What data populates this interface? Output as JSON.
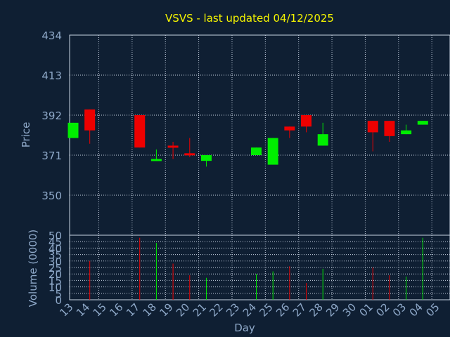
{
  "title": "VSVS - last updated 04/12/2025",
  "colors": {
    "background": "#0f1f33",
    "plot_bg": "#0f1f33",
    "axis_text": "#8fa9c9",
    "title": "#f5f500",
    "grid": "#c8d4e3",
    "up": "#00ee00",
    "down": "#ee0000"
  },
  "chart_data": [
    {
      "type": "candlestick",
      "ylabel": "Price",
      "ylim": [
        329,
        434
      ],
      "yticks": [
        434,
        413,
        392,
        371,
        350
      ],
      "grid": true,
      "x": [
        "13",
        "14",
        "15",
        "16",
        "17",
        "18",
        "19",
        "20",
        "21",
        "22",
        "23",
        "24",
        "25",
        "26",
        "27",
        "28",
        "29",
        "30",
        "01",
        "02",
        "03",
        "04",
        "05"
      ],
      "candles": [
        {
          "day": "13",
          "open": 380,
          "close": 388,
          "high": 388,
          "low": 380
        },
        {
          "day": "14",
          "open": 395,
          "close": 384,
          "high": 395,
          "low": 377
        },
        {
          "day": "17",
          "open": 392,
          "close": 375,
          "high": 392,
          "low": 375
        },
        {
          "day": "18",
          "open": 368,
          "close": 369,
          "high": 374,
          "low": 368
        },
        {
          "day": "19",
          "open": 376,
          "close": 375,
          "high": 378,
          "low": 369
        },
        {
          "day": "20",
          "open": 372,
          "close": 371,
          "high": 380,
          "low": 370
        },
        {
          "day": "21",
          "open": 368,
          "close": 371,
          "high": 371,
          "low": 365
        },
        {
          "day": "24",
          "open": 371,
          "close": 375,
          "high": 375,
          "low": 371
        },
        {
          "day": "25",
          "open": 366,
          "close": 380,
          "high": 380,
          "low": 366
        },
        {
          "day": "26",
          "open": 386,
          "close": 384,
          "high": 386,
          "low": 380
        },
        {
          "day": "27",
          "open": 392,
          "close": 386,
          "high": 392,
          "low": 383
        },
        {
          "day": "28",
          "open": 376,
          "close": 382,
          "high": 388,
          "low": 376
        },
        {
          "day": "01",
          "open": 389,
          "close": 383,
          "high": 389,
          "low": 373
        },
        {
          "day": "02",
          "open": 389,
          "close": 381,
          "high": 389,
          "low": 378
        },
        {
          "day": "03",
          "open": 382,
          "close": 384,
          "high": 387,
          "low": 382
        },
        {
          "day": "04",
          "open": 387,
          "close": 389,
          "high": 389,
          "low": 387
        }
      ]
    },
    {
      "type": "bar",
      "ylabel": "Volume (0000)",
      "xlabel": "Day",
      "ylim": [
        0,
        50
      ],
      "yticks": [
        0,
        5,
        10,
        15,
        20,
        25,
        30,
        35,
        40,
        45,
        50
      ],
      "grid": true,
      "categories": [
        "13",
        "14",
        "15",
        "16",
        "17",
        "18",
        "19",
        "20",
        "21",
        "22",
        "23",
        "24",
        "25",
        "26",
        "27",
        "28",
        "29",
        "30",
        "01",
        "02",
        "03",
        "04",
        "05"
      ],
      "values": [
        0,
        30,
        0,
        0,
        48,
        44,
        28,
        19,
        17,
        0,
        0,
        20,
        22,
        26,
        13,
        24,
        0,
        0,
        25,
        19,
        18,
        48,
        0
      ],
      "direction": [
        "up",
        "down",
        "",
        "",
        "down",
        "up",
        "down",
        "down",
        "up",
        "",
        "",
        "up",
        "up",
        "down",
        "down",
        "up",
        "",
        "",
        "down",
        "down",
        "up",
        "up",
        ""
      ]
    }
  ]
}
